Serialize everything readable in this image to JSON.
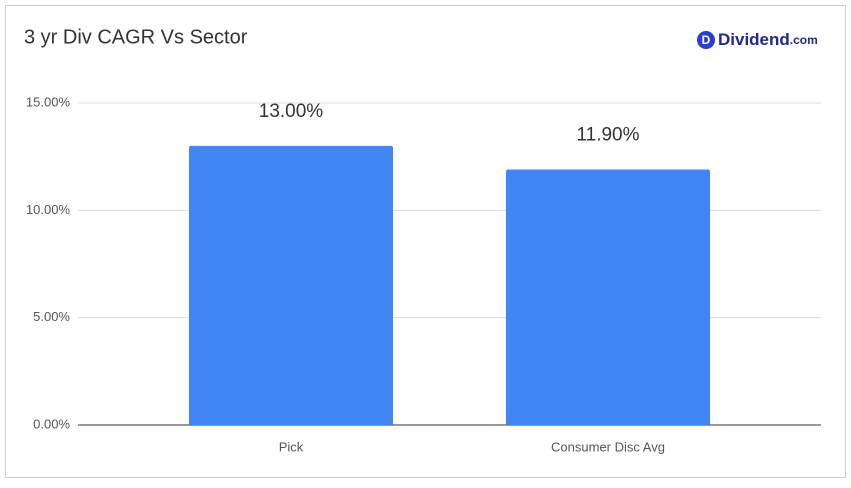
{
  "chart_data": {
    "type": "bar",
    "title": "3 yr Div CAGR Vs Sector",
    "categories": [
      "Pick",
      "Consumer Disc Avg"
    ],
    "values": [
      13,
      11.9
    ],
    "value_labels": [
      "13.00%",
      "11.90%"
    ],
    "color": "#4285f4",
    "ylim": [
      0,
      15
    ],
    "yticks": [
      {
        "value": 0,
        "label": "0.00%"
      },
      {
        "value": 5,
        "label": "5.00%"
      },
      {
        "value": 10,
        "label": "10.00%"
      },
      {
        "value": 15,
        "label": "15.00%"
      }
    ],
    "grid": true
  },
  "brand": {
    "icon": "D",
    "name": "Dividend",
    "suffix": ".com"
  }
}
